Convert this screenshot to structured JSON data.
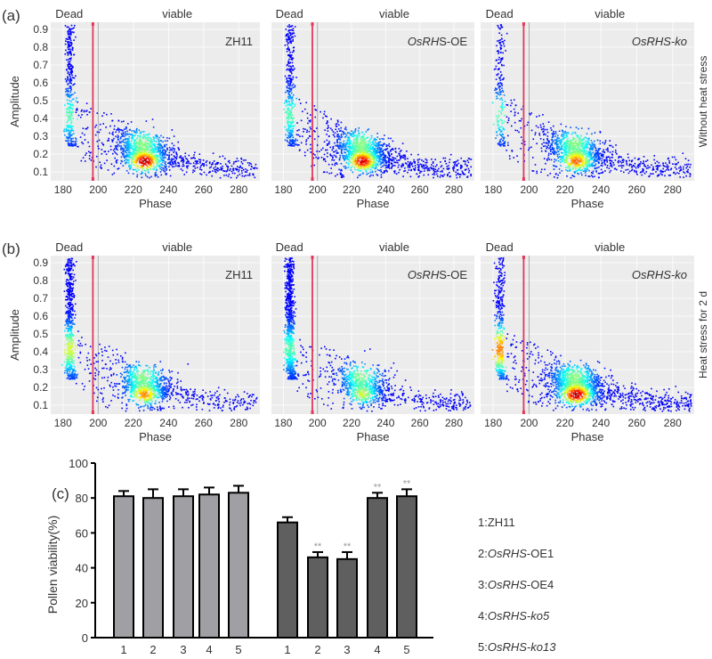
{
  "chart_data": [
    {
      "type": "scatter",
      "panel_label": "(a)",
      "row_label": "Without heat stress",
      "xlabel": "Phase",
      "ylabel": "Amplitude",
      "xlim": [
        173,
        292
      ],
      "ylim": [
        0.05,
        0.94
      ],
      "xticks": [
        180,
        200,
        220,
        240,
        260,
        280
      ],
      "yticks": [
        0.1,
        0.2,
        0.3,
        0.4,
        0.5,
        0.6,
        0.7,
        0.8,
        0.9
      ],
      "threshold_phase": 197,
      "region_labels": [
        "Dead",
        "viable"
      ],
      "grid": true,
      "colormap": "jet density",
      "panels": [
        {
          "title": "ZH11",
          "italic": ""
        },
        {
          "title": "OsRHS",
          "suffix": "-OE",
          "italic_part": "OsRHS"
        },
        {
          "title": "OsRHS-ko",
          "italic_part": "OsRHS-ko"
        }
      ]
    },
    {
      "type": "scatter",
      "panel_label": "(b)",
      "row_label": "Heat stress for 2 d",
      "xlabel": "Phase",
      "ylabel": "Amplitude",
      "xlim": [
        173,
        292
      ],
      "ylim": [
        0.05,
        0.94
      ],
      "xticks": [
        180,
        200,
        220,
        240,
        260,
        280
      ],
      "yticks": [
        0.1,
        0.2,
        0.3,
        0.4,
        0.5,
        0.6,
        0.7,
        0.8,
        0.9
      ],
      "threshold_phase": 197,
      "region_labels": [
        "Dead",
        "viable"
      ],
      "grid": true,
      "colormap": "jet density",
      "panels": [
        {
          "title": "ZH11"
        },
        {
          "title": "OsRHS-OE"
        },
        {
          "title": "OsRHS-ko"
        }
      ]
    },
    {
      "type": "bar",
      "panel_label": "(c)",
      "ylabel": "Pollen viability(%)",
      "ylim": [
        0,
        100
      ],
      "yticks": [
        0,
        20,
        40,
        60,
        80,
        100
      ],
      "groups": [
        {
          "categories": [
            "1",
            "2",
            "3",
            "4",
            "5"
          ],
          "values": [
            81,
            80,
            81,
            82,
            83
          ],
          "errors": [
            3,
            5,
            4,
            4,
            4
          ],
          "color": "#a0a0a4",
          "significance": [
            "",
            "",
            "",
            "",
            ""
          ]
        },
        {
          "categories": [
            "1",
            "2",
            "3",
            "4",
            "5"
          ],
          "values": [
            66,
            46,
            45,
            80,
            81
          ],
          "errors": [
            3,
            3,
            4,
            3,
            4
          ],
          "color": "#5f5f5f",
          "significance": [
            "",
            "**",
            "**",
            "**",
            "**"
          ]
        }
      ],
      "legend": [
        {
          "num": "1:",
          "italic": "",
          "rest": "ZH11"
        },
        {
          "num": "2:",
          "italic": "OsRHS",
          "rest": "-OE1"
        },
        {
          "num": "3:",
          "italic": "OsRHS",
          "rest": "-OE4"
        },
        {
          "num": "4:",
          "italic": "OsRHS-ko5",
          "rest": ""
        },
        {
          "num": "5:",
          "italic": "OsRHS-ko13",
          "rest": ""
        }
      ]
    }
  ]
}
